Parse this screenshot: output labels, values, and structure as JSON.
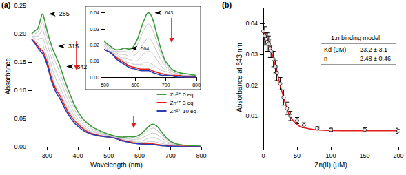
{
  "chart_data": [
    {
      "type": "line",
      "title": "(a)",
      "x_label": "Wavelength (nm)",
      "y_label": "Absorbance",
      "grid": false,
      "legend": "lower right",
      "x": [
        250,
        260,
        270,
        280,
        285,
        290,
        300,
        315,
        330,
        342,
        360,
        380,
        400,
        430,
        460,
        500,
        520,
        540,
        555,
        564,
        580,
        600,
        620,
        630,
        643,
        655,
        670,
        690,
        710,
        740,
        770,
        800
      ],
      "xlim": [
        250,
        800
      ],
      "xticks": [
        300,
        400,
        500,
        600,
        700,
        800
      ],
      "ylim": [
        0,
        0.25
      ],
      "yticks": [
        {
          "value": 0,
          "label": "0.00"
        },
        0.05,
        {
          "value": 0.1,
          "label": "0.10"
        },
        0.15,
        {
          "value": 0.2,
          "label": "0.20"
        },
        0.25
      ],
      "peaks": [
        285,
        315,
        342
      ],
      "series": [
        {
          "name": "Zn²⁺ 0 eq",
          "color": "#3c9a3c",
          "values": [
            0.2,
            0.205,
            0.21,
            0.228,
            0.235,
            0.228,
            0.205,
            0.178,
            0.158,
            0.142,
            0.113,
            0.085,
            0.062,
            0.042,
            0.031,
            0.022,
            0.019,
            0.017,
            0.0175,
            0.018,
            0.0175,
            0.021,
            0.031,
            0.036,
            0.04,
            0.037,
            0.027,
            0.014,
            0.007,
            0.003,
            0.002,
            0.001
          ]
        },
        {
          "color": "#bdbdbd",
          "values": [
            0.198,
            0.2,
            0.203,
            0.215,
            0.22,
            0.214,
            0.195,
            0.168,
            0.146,
            0.13,
            0.103,
            0.077,
            0.056,
            0.038,
            0.028,
            0.021,
            0.018,
            0.016,
            0.016,
            0.016,
            0.0155,
            0.018,
            0.026,
            0.03,
            0.033,
            0.03,
            0.022,
            0.012,
            0.006,
            0.003,
            0.002,
            0.001
          ]
        },
        {
          "color": "#bdbdbd",
          "values": [
            0.196,
            0.196,
            0.196,
            0.203,
            0.206,
            0.2,
            0.183,
            0.155,
            0.132,
            0.118,
            0.093,
            0.069,
            0.05,
            0.034,
            0.026,
            0.02,
            0.017,
            0.015,
            0.014,
            0.014,
            0.013,
            0.014,
            0.019,
            0.022,
            0.024,
            0.022,
            0.016,
            0.009,
            0.005,
            0.002,
            0.001,
            0.001
          ]
        },
        {
          "color": "#bdbdbd",
          "values": [
            0.194,
            0.192,
            0.19,
            0.192,
            0.192,
            0.186,
            0.17,
            0.142,
            0.118,
            0.105,
            0.083,
            0.062,
            0.045,
            0.031,
            0.024,
            0.019,
            0.016,
            0.014,
            0.012,
            0.012,
            0.011,
            0.01,
            0.013,
            0.015,
            0.016,
            0.015,
            0.011,
            0.006,
            0.004,
            0.002,
            0.001,
            0.001
          ]
        },
        {
          "color": "#bdbdbd",
          "values": [
            0.192,
            0.188,
            0.184,
            0.18,
            0.18,
            0.174,
            0.158,
            0.13,
            0.104,
            0.095,
            0.075,
            0.056,
            0.041,
            0.029,
            0.022,
            0.018,
            0.016,
            0.013,
            0.011,
            0.01,
            0.009,
            0.008,
            0.008,
            0.009,
            0.009,
            0.008,
            0.006,
            0.004,
            0.003,
            0.001,
            0.001,
            0.0
          ]
        },
        {
          "name": "Zn²⁺ 3 eq",
          "color": "#e0201b",
          "values": [
            0.19,
            0.185,
            0.178,
            0.172,
            0.17,
            0.165,
            0.15,
            0.12,
            0.1,
            0.09,
            0.07,
            0.052,
            0.04,
            0.027,
            0.021,
            0.017,
            0.015,
            0.012,
            0.01,
            0.009,
            0.007,
            0.006,
            0.005,
            0.005,
            0.005,
            0.004,
            0.003,
            0.002,
            0.001,
            0.001,
            0.0,
            0.0
          ]
        },
        {
          "name": "Zn²⁺ 10 eq",
          "color": "#2f3db0",
          "values": [
            0.19,
            0.183,
            0.175,
            0.168,
            0.165,
            0.16,
            0.145,
            0.115,
            0.095,
            0.085,
            0.065,
            0.048,
            0.036,
            0.025,
            0.02,
            0.017,
            0.015,
            0.011,
            0.009,
            0.008,
            0.006,
            0.005,
            0.004,
            0.004,
            0.004,
            0.003,
            0.002,
            0.001,
            0.001,
            0.0,
            0.0,
            0.0
          ]
        }
      ],
      "inset": {
        "xlim": [
          500,
          800
        ],
        "xticks": [
          500,
          600,
          700,
          800
        ],
        "ylim": [
          0,
          0.042
        ],
        "yticks": [
          {
            "value": 0,
            "label": "0.00"
          },
          0.01,
          0.02,
          0.03,
          0.04
        ],
        "peaks": [
          564,
          643
        ]
      }
    },
    {
      "type": "scatter",
      "title": "(b)",
      "x_label": "Zn(II) (μM)",
      "y_label": "Absorbance at 643 nm",
      "grid": false,
      "xlim": [
        0,
        200
      ],
      "xticks": [
        0,
        50,
        100,
        150,
        200
      ],
      "ylim": [
        0,
        0.045
      ],
      "yticks": [
        0.01,
        0.02,
        0.03,
        0.04
      ],
      "series": [
        {
          "type": "scatter",
          "marker": "open circle",
          "color": "#000000",
          "x": [
            0,
            2,
            4,
            6,
            8,
            10,
            12,
            15,
            18,
            20,
            25,
            30,
            35,
            40,
            50,
            60,
            80,
            100,
            150,
            200
          ],
          "values": [
            0.0375,
            0.036,
            0.035,
            0.034,
            0.0335,
            0.032,
            0.031,
            0.0285,
            0.026,
            0.024,
            0.0205,
            0.016,
            0.0125,
            0.01,
            0.0085,
            0.007,
            0.006,
            0.0055,
            0.0055,
            0.0052
          ],
          "errors": [
            0.0025,
            0.003,
            0.002,
            0.003,
            0.0025,
            0.003,
            0.002,
            0.0025,
            0.002,
            0.0025,
            0.002,
            0.0025,
            0.002,
            0.0015,
            0.001,
            0.0008,
            0.0005,
            0.0005,
            0.0007,
            0.0008
          ]
        },
        {
          "type": "line",
          "color": "#e41a1c",
          "x": [
            0,
            5,
            10,
            15,
            20,
            25,
            30,
            35,
            40,
            50,
            60,
            80,
            100,
            150,
            200
          ],
          "values": [
            0.0375,
            0.0355,
            0.0325,
            0.0285,
            0.0245,
            0.02,
            0.016,
            0.0125,
            0.0098,
            0.0072,
            0.0062,
            0.0055,
            0.0053,
            0.0052,
            0.0052
          ]
        }
      ],
      "table": {
        "title": "1:n binding model",
        "rows": [
          [
            "Kd (μM)",
            "23.2 ± 3.1"
          ],
          [
            "n",
            "2.48 ± 0.46"
          ]
        ]
      }
    }
  ]
}
